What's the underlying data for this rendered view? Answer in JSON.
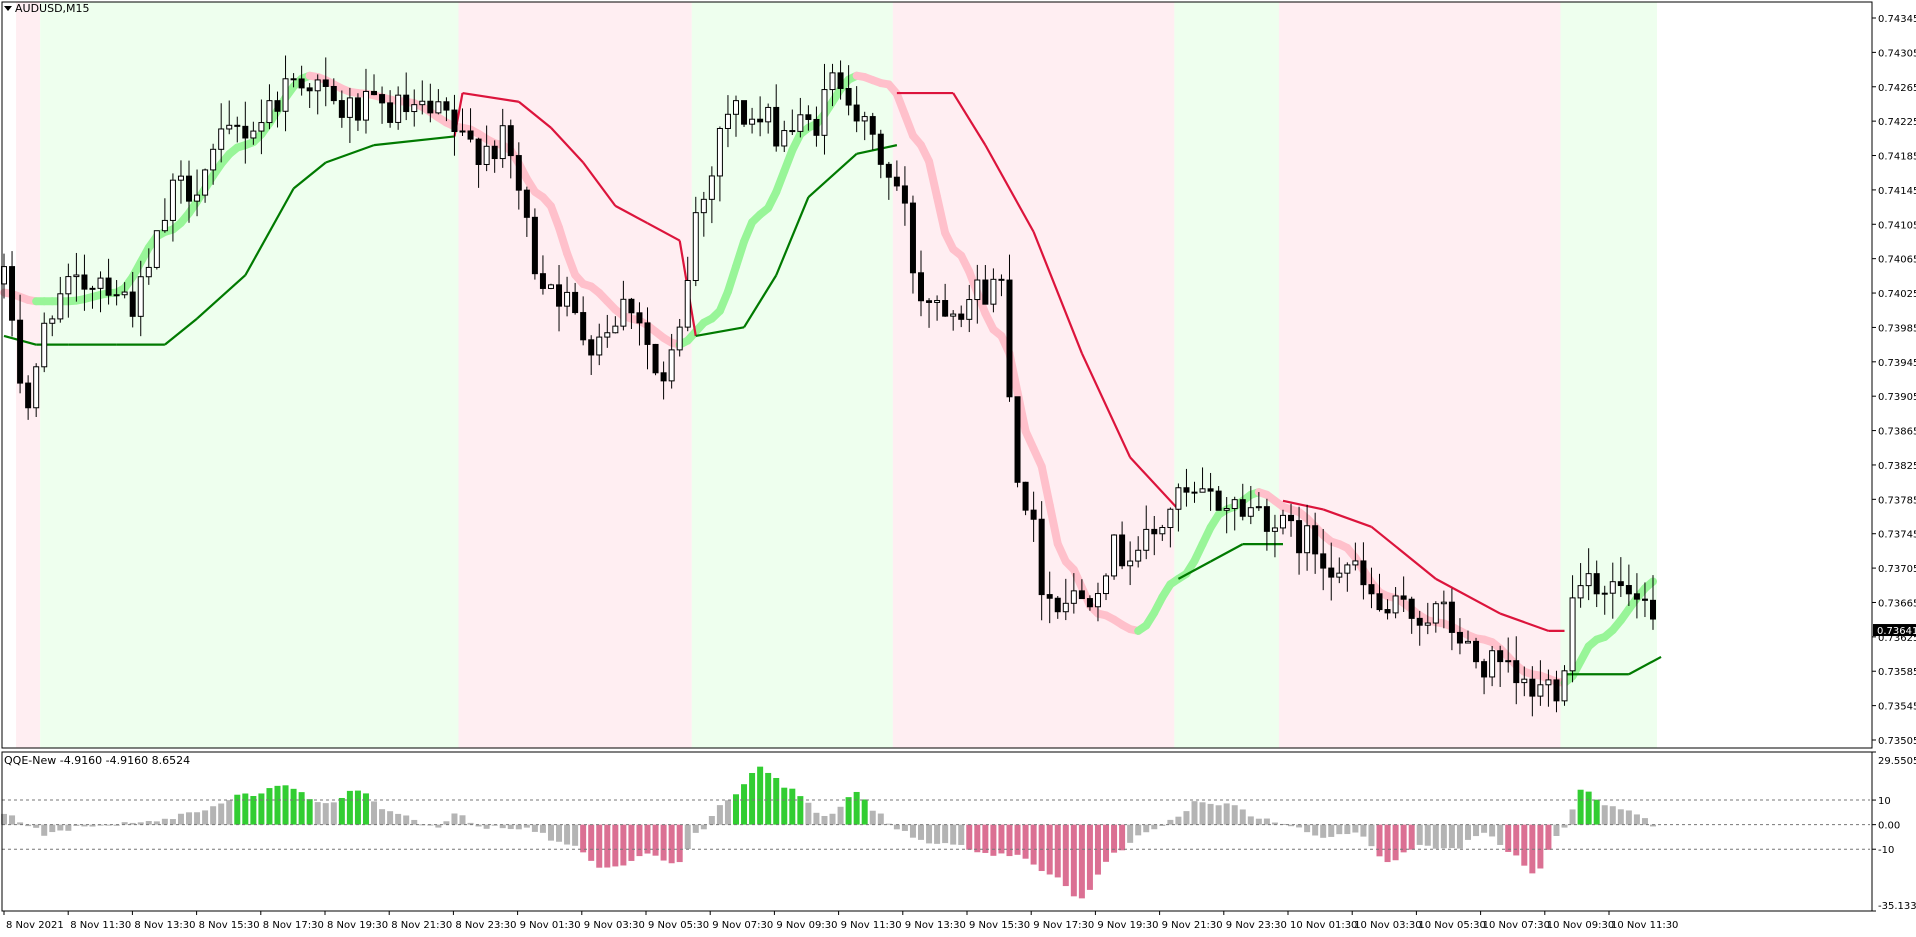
{
  "chart_data": [
    {
      "type": "candlestick",
      "symbol_label": "AUDUSD,M15",
      "price_axis_ticks": [
        "0.74345",
        "0.74305",
        "0.74265",
        "0.74225",
        "0.74185",
        "0.74145",
        "0.74105",
        "0.74065",
        "0.74025",
        "0.73985",
        "0.73945",
        "0.73905",
        "0.73865",
        "0.73825",
        "0.73785",
        "0.73745",
        "0.73705",
        "0.73665",
        "0.73625",
        "0.73585",
        "0.73545",
        "0.73505"
      ],
      "ylim": [
        0.73505,
        0.74365
      ],
      "current_price": "0.73641",
      "time_ticks": [
        "8 Nov 2021",
        "8 Nov 11:30",
        "8 Nov 13:30",
        "8 Nov 15:30",
        "8 Nov 17:30",
        "8 Nov 19:30",
        "8 Nov 21:30",
        "8 Nov 23:30",
        "9 Nov 01:30",
        "9 Nov 03:30",
        "9 Nov 05:30",
        "9 Nov 07:30",
        "9 Nov 09:30",
        "9 Nov 11:30",
        "9 Nov 13:30",
        "9 Nov 15:30",
        "9 Nov 17:30",
        "9 Nov 19:30",
        "9 Nov 21:30",
        "9 Nov 23:30",
        "10 Nov 01:30",
        "10 Nov 03:30",
        "10 Nov 05:30",
        "10 Nov 07:30",
        "10 Nov 09:30",
        "10 Nov 11:30"
      ],
      "bar_count": 206,
      "background_zones": [
        {
          "from": 0,
          "to": 2,
          "color": "#ffffff"
        },
        {
          "from": 2,
          "to": 5,
          "color": "#ffeef2"
        },
        {
          "from": 5,
          "to": 57,
          "color": "#eeffee"
        },
        {
          "from": 57,
          "to": 86,
          "color": "#ffeef2"
        },
        {
          "from": 86,
          "to": 111,
          "color": "#eeffee"
        },
        {
          "from": 111,
          "to": 146,
          "color": "#ffeef2"
        },
        {
          "from": 146,
          "to": 159,
          "color": "#eeffee"
        },
        {
          "from": 159,
          "to": 194,
          "color": "#ffeef2"
        },
        {
          "from": 194,
          "to": 206,
          "color": "#eeffee"
        }
      ],
      "colors": {
        "bull_candle": "#ffffff",
        "bear_candle": "#000000",
        "ma_up": "#98f598",
        "ma_down": "#ffc0cb",
        "trail_up": "#007a00",
        "trail_down": "#dc143c",
        "grid": "#c8c8c8"
      },
      "price_waypoints": [
        [
          0,
          0.7404
        ],
        [
          3,
          0.739
        ],
        [
          6,
          0.7402
        ],
        [
          12,
          0.7405
        ],
        [
          16,
          0.7402
        ],
        [
          22,
          0.7415
        ],
        [
          30,
          0.7422
        ],
        [
          37,
          0.7428
        ],
        [
          42,
          0.7424
        ],
        [
          48,
          0.7424
        ],
        [
          55,
          0.7423
        ],
        [
          57,
          0.742
        ],
        [
          62,
          0.742
        ],
        [
          67,
          0.7405
        ],
        [
          73,
          0.7398
        ],
        [
          78,
          0.7402
        ],
        [
          82,
          0.7392
        ],
        [
          84,
          0.7398
        ],
        [
          86,
          0.7412
        ],
        [
          90,
          0.7424
        ],
        [
          96,
          0.7422
        ],
        [
          100,
          0.7422
        ],
        [
          104,
          0.7428
        ],
        [
          108,
          0.742
        ],
        [
          111,
          0.7415
        ],
        [
          114,
          0.7403
        ],
        [
          118,
          0.7402
        ],
        [
          124,
          0.7404
        ],
        [
          126,
          0.7382
        ],
        [
          130,
          0.7368
        ],
        [
          134,
          0.7368
        ],
        [
          138,
          0.7373
        ],
        [
          142,
          0.7374
        ],
        [
          146,
          0.7379
        ],
        [
          150,
          0.7379
        ],
        [
          156,
          0.7378
        ],
        [
          160,
          0.7375
        ],
        [
          166,
          0.7372
        ],
        [
          172,
          0.7366
        ],
        [
          178,
          0.7366
        ],
        [
          184,
          0.736
        ],
        [
          190,
          0.7357
        ],
        [
          193,
          0.7358
        ],
        [
          196,
          0.7371
        ],
        [
          200,
          0.7369
        ],
        [
          206,
          0.7364
        ]
      ],
      "moving_average": [
        [
          0,
          0.7403
        ],
        [
          4,
          0.7402
        ],
        [
          8,
          0.7402
        ],
        [
          14,
          0.7403
        ],
        [
          20,
          0.741
        ],
        [
          30,
          0.742
        ],
        [
          38,
          0.7428
        ],
        [
          44,
          0.7426
        ],
        [
          50,
          0.7425
        ],
        [
          57,
          0.7422
        ],
        [
          62,
          0.742
        ],
        [
          67,
          0.7414
        ],
        [
          72,
          0.7404
        ],
        [
          78,
          0.74
        ],
        [
          84,
          0.7397
        ],
        [
          88,
          0.74
        ],
        [
          94,
          0.7412
        ],
        [
          100,
          0.7422
        ],
        [
          106,
          0.7428
        ],
        [
          110,
          0.7427
        ],
        [
          114,
          0.742
        ],
        [
          118,
          0.7408
        ],
        [
          124,
          0.7398
        ],
        [
          128,
          0.7385
        ],
        [
          132,
          0.7372
        ],
        [
          136,
          0.7366
        ],
        [
          141,
          0.7364
        ],
        [
          146,
          0.737
        ],
        [
          152,
          0.7378
        ],
        [
          156,
          0.738
        ],
        [
          160,
          0.7378
        ],
        [
          166,
          0.7374
        ],
        [
          172,
          0.7368
        ],
        [
          178,
          0.7365
        ],
        [
          184,
          0.7363
        ],
        [
          190,
          0.7359
        ],
        [
          194,
          0.7358
        ],
        [
          198,
          0.7363
        ],
        [
          206,
          0.737
        ]
      ],
      "trailing_stop": [
        [
          0,
          0.7398
        ],
        [
          4,
          0.7397
        ],
        [
          8,
          0.7397
        ],
        [
          14,
          0.7397
        ],
        [
          20,
          0.7397
        ],
        [
          24,
          0.74
        ],
        [
          30,
          0.7405
        ],
        [
          36,
          0.7415
        ],
        [
          40,
          0.7418
        ],
        [
          46,
          0.742
        ],
        [
          56,
          0.7421
        ],
        [
          57,
          0.7426
        ],
        [
          64,
          0.7425
        ],
        [
          68,
          0.7422
        ],
        [
          72,
          0.7418
        ],
        [
          76,
          0.7413
        ],
        [
          80,
          0.7411
        ],
        [
          84,
          0.7409
        ],
        [
          86,
          0.7398
        ],
        [
          92,
          0.7399
        ],
        [
          96,
          0.7405
        ],
        [
          100,
          0.7414
        ],
        [
          106,
          0.7419
        ],
        [
          111,
          0.742
        ],
        [
          111,
          0.7426
        ],
        [
          118,
          0.7426
        ],
        [
          122,
          0.742
        ],
        [
          128,
          0.741
        ],
        [
          134,
          0.7396
        ],
        [
          140,
          0.7384
        ],
        [
          146,
          0.7378
        ],
        [
          146,
          0.737
        ],
        [
          150,
          0.7372
        ],
        [
          154,
          0.7374
        ],
        [
          159,
          0.7374
        ],
        [
          159,
          0.7379
        ],
        [
          164,
          0.7378
        ],
        [
          170,
          0.7376
        ],
        [
          178,
          0.737
        ],
        [
          186,
          0.7366
        ],
        [
          192,
          0.7364
        ],
        [
          194,
          0.7364
        ],
        [
          194,
          0.7359
        ],
        [
          202,
          0.7359
        ],
        [
          206,
          0.7361
        ]
      ]
    },
    {
      "type": "bar",
      "indicator_label": "QQE-New -4.9160 -4.9160 8.6524",
      "yticks": [
        "29.5505",
        "10",
        "0.00",
        "-10",
        "-35.1334"
      ],
      "ylim": [
        -35.1334,
        29.5505
      ],
      "levels": [
        10,
        0,
        -10
      ],
      "colors": {
        "neutral": "#b4b4b4",
        "strong_up": "#32cd32",
        "strong_down": "#db7093"
      },
      "rsi_waypoints": [
        [
          0,
          4
        ],
        [
          3,
          0
        ],
        [
          5,
          -4
        ],
        [
          10,
          -1
        ],
        [
          18,
          1
        ],
        [
          24,
          5
        ],
        [
          30,
          12
        ],
        [
          35,
          16
        ],
        [
          40,
          8
        ],
        [
          44,
          14
        ],
        [
          48,
          5
        ],
        [
          54,
          -1
        ],
        [
          56,
          4
        ],
        [
          60,
          -1
        ],
        [
          65,
          -2
        ],
        [
          70,
          -8
        ],
        [
          75,
          -18
        ],
        [
          80,
          -12
        ],
        [
          84,
          -16
        ],
        [
          86,
          -4
        ],
        [
          90,
          10
        ],
        [
          94,
          23
        ],
        [
          98,
          14
        ],
        [
          102,
          3
        ],
        [
          106,
          13
        ],
        [
          108,
          6
        ],
        [
          111,
          -2
        ],
        [
          114,
          -7
        ],
        [
          118,
          -8
        ],
        [
          122,
          -12
        ],
        [
          126,
          -12
        ],
        [
          130,
          -20
        ],
        [
          134,
          -30
        ],
        [
          138,
          -12
        ],
        [
          142,
          -3
        ],
        [
          146,
          3
        ],
        [
          148,
          9
        ],
        [
          152,
          8
        ],
        [
          156,
          3
        ],
        [
          160,
          0
        ],
        [
          164,
          -5
        ],
        [
          168,
          -3
        ],
        [
          172,
          -15
        ],
        [
          176,
          -9
        ],
        [
          180,
          -10
        ],
        [
          184,
          -4
        ],
        [
          188,
          -13
        ],
        [
          190,
          -20
        ],
        [
          194,
          -2
        ],
        [
          196,
          14
        ],
        [
          200,
          7
        ],
        [
          204,
          3
        ],
        [
          206,
          -4
        ]
      ]
    }
  ]
}
